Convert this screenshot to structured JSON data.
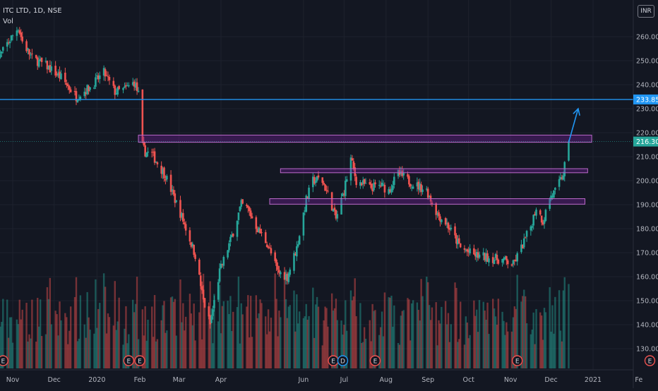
{
  "header": {
    "symbol_line": "ITC LTD, 1D, NSE",
    "volume_label": "Vol",
    "currency": "INR"
  },
  "colors": {
    "background": "#131722",
    "up": "#26a69a",
    "down": "#ef5350",
    "grid": "#1e222d",
    "axis_text": "#b2b5be",
    "resistance_line": "#2196f3",
    "zone_fill": "#7b1fa2",
    "zone_border": "#ba68c8",
    "last_price_label": "#26a69a",
    "target_label": "#2196f3"
  },
  "chart_data": {
    "type": "candlestick",
    "y_ticks": [
      "260.00",
      "250.00",
      "240.00",
      "230.00",
      "220.00",
      "210.00",
      "200.00",
      "190.00",
      "180.00",
      "170.00",
      "160.00",
      "150.00",
      "140.00",
      "130.00"
    ],
    "x_ticks": [
      "Nov",
      "Dec",
      "2020",
      "Feb",
      "Mar",
      "Apr",
      "Jun",
      "Jul",
      "Aug",
      "Sep",
      "Oct",
      "Nov",
      "Dec",
      "2021",
      "Fe"
    ],
    "ylim": [
      126,
      270
    ],
    "price_labels": [
      {
        "text": "233.85",
        "price": 233.85,
        "kind": "target"
      },
      {
        "text": "216.30",
        "price": 216.3,
        "kind": "last"
      }
    ],
    "horizontal_line": {
      "price": 233.85
    },
    "zones": [
      {
        "from": "2020-01-31",
        "to": "2020-12-31",
        "low": 216,
        "high": 219
      },
      {
        "from": "2020-05-15",
        "to": "2020-12-28",
        "low": 203.3,
        "high": 205
      },
      {
        "from": "2020-05-07",
        "to": "2020-12-26",
        "low": 190.2,
        "high": 192.5
      }
    ],
    "arrow": {
      "from": {
        "date": "2020-12-14",
        "price": 216
      },
      "to": {
        "date": "2020-12-21",
        "price": 230
      }
    },
    "events": [
      {
        "label": "E",
        "date": "2019-10-25"
      },
      {
        "label": "E",
        "date": "2020-01-24"
      },
      {
        "label": "E",
        "date": "2020-02-01"
      },
      {
        "label": "E",
        "date": "2020-06-23"
      },
      {
        "label": "D",
        "date": "2020-06-30"
      },
      {
        "label": "E",
        "date": "2020-07-24"
      },
      {
        "label": "E",
        "date": "2020-11-06"
      },
      {
        "label": "E",
        "date": "2021-02-12"
      }
    ],
    "key_points": [
      [
        "2019-10-21",
        250
      ],
      [
        "2019-10-28",
        257
      ],
      [
        "2019-11-05",
        264
      ],
      [
        "2019-11-08",
        258
      ],
      [
        "2019-11-15",
        251
      ],
      [
        "2019-11-25",
        248
      ],
      [
        "2019-12-06",
        243
      ],
      [
        "2019-12-17",
        235
      ],
      [
        "2019-12-27",
        239
      ],
      [
        "2020-01-06",
        245
      ],
      [
        "2020-01-14",
        237
      ],
      [
        "2020-01-21",
        238
      ],
      [
        "2020-01-28",
        241
      ],
      [
        "2020-01-31",
        236
      ],
      [
        "2020-02-01",
        216
      ],
      [
        "2020-02-05",
        212
      ],
      [
        "2020-02-10",
        211
      ],
      [
        "2020-02-20",
        202
      ],
      [
        "2020-03-03",
        185
      ],
      [
        "2020-03-13",
        169
      ],
      [
        "2020-03-19",
        150
      ],
      [
        "2020-03-24",
        140
      ],
      [
        "2020-03-31",
        162
      ],
      [
        "2020-04-08",
        175
      ],
      [
        "2020-04-16",
        190
      ],
      [
        "2020-04-21",
        188
      ],
      [
        "2020-04-28",
        180
      ],
      [
        "2020-05-05",
        174
      ],
      [
        "2020-05-13",
        162
      ],
      [
        "2020-05-20",
        160
      ],
      [
        "2020-05-27",
        172
      ],
      [
        "2020-06-03",
        192
      ],
      [
        "2020-06-08",
        200
      ],
      [
        "2020-06-14",
        201
      ],
      [
        "2020-06-20",
        193
      ],
      [
        "2020-06-25",
        184
      ],
      [
        "2020-07-01",
        196
      ],
      [
        "2020-07-06",
        209
      ],
      [
        "2020-07-10",
        200
      ],
      [
        "2020-07-20",
        197
      ],
      [
        "2020-07-28",
        198
      ],
      [
        "2020-08-03",
        196
      ],
      [
        "2020-08-10",
        203
      ],
      [
        "2020-08-20",
        199
      ],
      [
        "2020-08-31",
        196
      ],
      [
        "2020-09-08",
        186
      ],
      [
        "2020-09-15",
        182
      ],
      [
        "2020-09-25",
        172
      ],
      [
        "2020-10-05",
        169
      ],
      [
        "2020-10-15",
        168
      ],
      [
        "2020-10-26",
        167
      ],
      [
        "2020-11-03",
        165
      ],
      [
        "2020-11-09",
        172
      ],
      [
        "2020-11-16",
        181
      ],
      [
        "2020-11-20",
        189
      ],
      [
        "2020-11-25",
        183
      ],
      [
        "2020-11-30",
        193
      ],
      [
        "2020-12-05",
        196
      ],
      [
        "2020-12-10",
        203
      ],
      [
        "2020-12-14",
        216.3
      ]
    ]
  }
}
